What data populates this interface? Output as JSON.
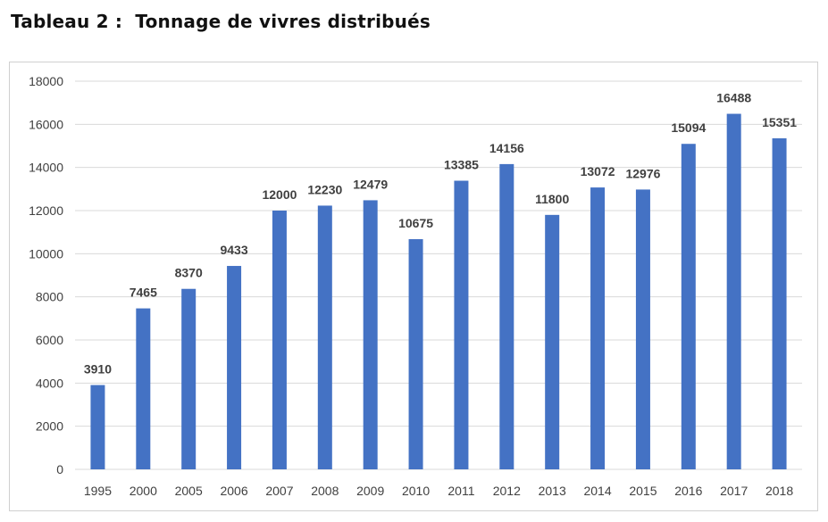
{
  "page": {
    "title": "Tableau 2 :  Tonnage de vivres distribués"
  },
  "chart_data": {
    "type": "bar",
    "title": "",
    "xlabel": "",
    "ylabel": "",
    "categories": [
      "1995",
      "2000",
      "2005",
      "2006",
      "2007",
      "2008",
      "2009",
      "2010",
      "2011",
      "2012",
      "2013",
      "2014",
      "2015",
      "2016",
      "2017",
      "2018"
    ],
    "values": [
      3910,
      7465,
      8370,
      9433,
      12000,
      12230,
      12479,
      10675,
      13385,
      14156,
      11800,
      13072,
      12976,
      15094,
      16488,
      15351
    ],
    "data_labels": [
      "3910",
      "7465",
      "8370",
      "9433",
      "12000",
      "12230",
      "12479",
      "10675",
      "13385",
      "14156",
      "11800",
      "13072",
      "12976",
      "15094",
      "16488",
      "15351"
    ],
    "ylim": [
      0,
      18000
    ],
    "yticks": [
      "0",
      "2000",
      "4000",
      "6000",
      "8000",
      "10000",
      "12000",
      "14000",
      "16000",
      "18000"
    ],
    "grid": true,
    "legend": "none",
    "bar_color": "#4472C4",
    "grid_color": "#d9d9d9"
  }
}
